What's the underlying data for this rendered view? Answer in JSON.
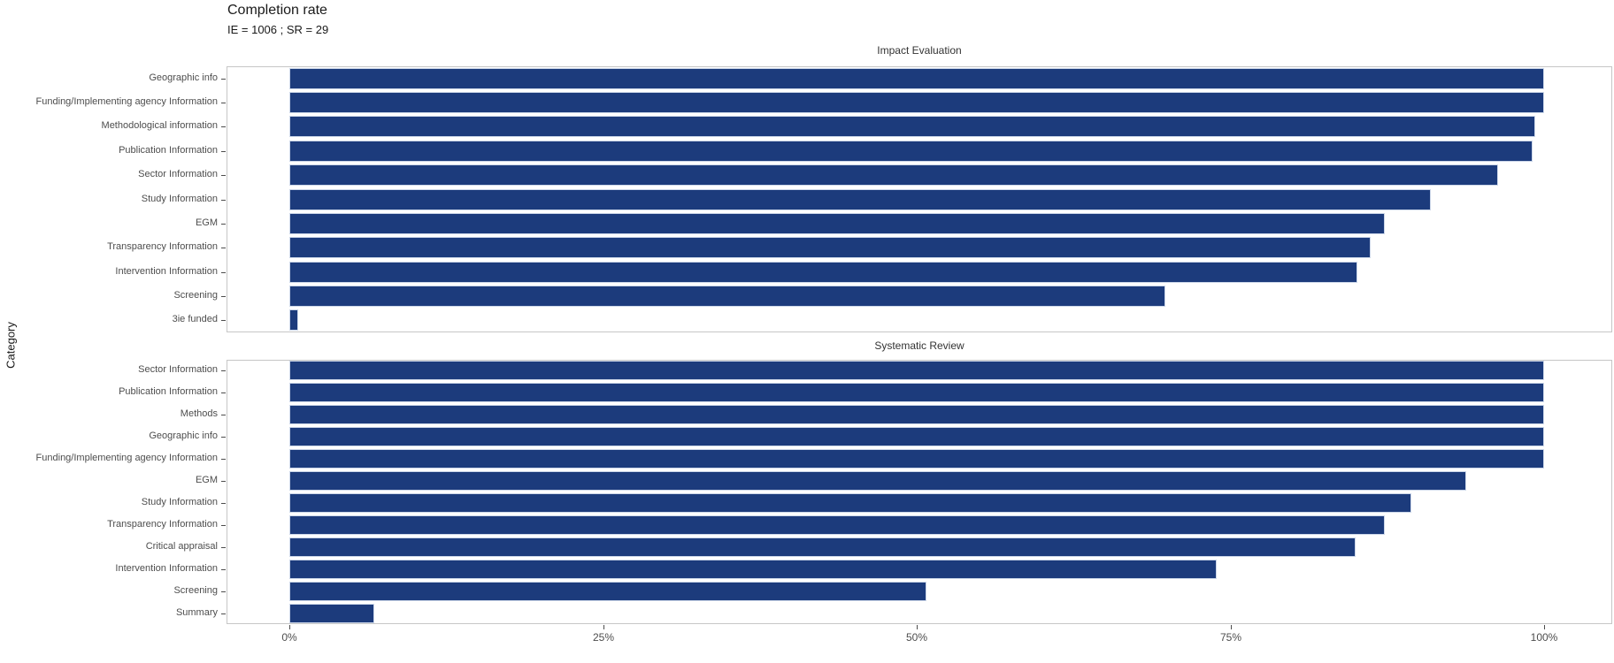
{
  "chart_data": {
    "type": "bar",
    "orientation": "horizontal",
    "title": "Completion rate",
    "subtitle": "IE = 1006 ; SR = 29",
    "ylabel": "Category",
    "xlabel": "",
    "xlim": [
      0,
      100
    ],
    "x_ticks": [
      {
        "value": 0,
        "label": "0%"
      },
      {
        "value": 25,
        "label": "25%"
      },
      {
        "value": 50,
        "label": "50%"
      },
      {
        "value": 75,
        "label": "75%"
      },
      {
        "value": 100,
        "label": "100%"
      }
    ],
    "grid": false,
    "legend": "none",
    "bar_color": "#1c3b7c",
    "bar_border_color": "#ccd7e9",
    "facets": [
      {
        "label": "Impact Evaluation",
        "categories": [
          "Geographic info",
          "Funding/Implementing agency Information",
          "Methodological information",
          "Publication Information",
          "Sector Information",
          "Study Information",
          "EGM",
          "Transparency Information",
          "Intervention Information",
          "Screening",
          "3ie funded"
        ],
        "values": [
          100,
          100,
          99.3,
          99.1,
          96.3,
          91,
          87.3,
          86.2,
          85.1,
          69.8,
          0.7
        ]
      },
      {
        "label": "Systematic Review",
        "categories": [
          "Sector Information",
          "Publication Information",
          "Methods",
          "Geographic info",
          "Funding/Implementing agency Information",
          "EGM",
          "Study Information",
          "Transparency Information",
          "Critical appraisal",
          "Intervention Information",
          "Screening",
          "Summary"
        ],
        "values": [
          100,
          100,
          100,
          100,
          100,
          93.8,
          89.4,
          87.3,
          85,
          73.9,
          50.8,
          6.8
        ]
      }
    ]
  }
}
